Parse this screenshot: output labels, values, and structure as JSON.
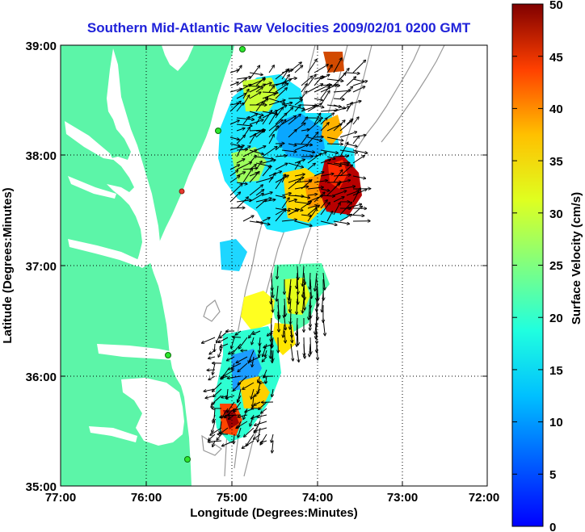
{
  "title": "Southern Mid-Atlantic Raw Velocities 2009/02/01 0200 GMT",
  "x_axis": {
    "label": "Longitude (Degrees:Minutes)",
    "ticks": [
      "77:00",
      "76:00",
      "75:00",
      "74:00",
      "73:00",
      "72:00"
    ],
    "range_deg_west": [
      77,
      72
    ]
  },
  "y_axis": {
    "label": "Latitude (Degrees:Minutes)",
    "ticks": [
      "39:00",
      "38:00",
      "37:00",
      "36:00",
      "35:00"
    ],
    "range_deg_north": [
      35,
      39
    ]
  },
  "colorbar": {
    "label": "Surface Velocity (cm/s)",
    "ticks": [
      "50",
      "45",
      "40",
      "35",
      "30",
      "25",
      "20",
      "15",
      "10",
      "5",
      "0"
    ],
    "range": [
      0,
      50
    ],
    "colormap": "jet"
  },
  "colors": {
    "land": "#5cf5a8",
    "title": "#1f22d9",
    "grid": "#000000",
    "bathymetry": "#9a9a9a",
    "station_active": "#2ee62e",
    "station_inactive": "#e63a2e"
  },
  "grid": "dotted"
}
